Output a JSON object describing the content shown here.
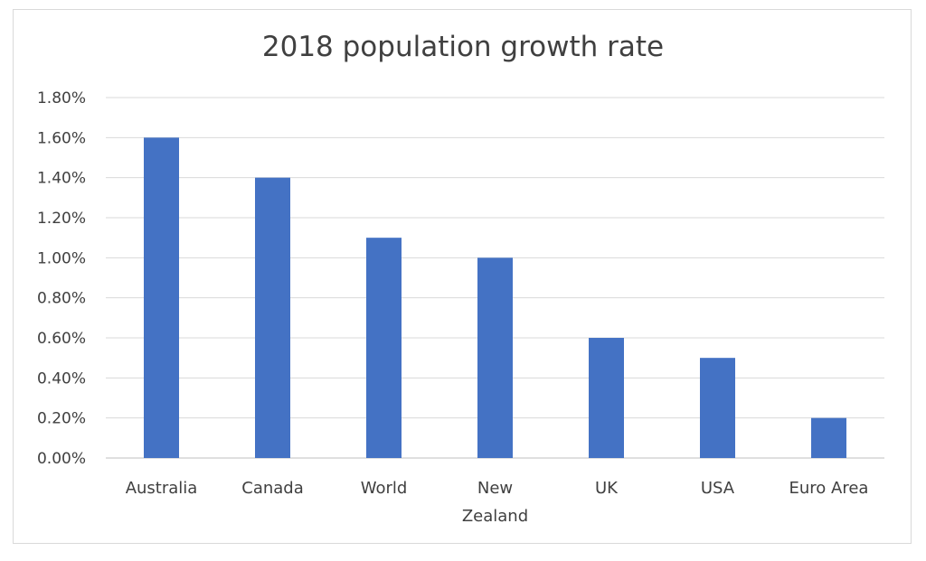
{
  "chart_data": {
    "type": "bar",
    "title": "2018 population growth rate",
    "xlabel": "",
    "ylabel": "",
    "categories": [
      "Australia",
      "Canada",
      "World",
      "New Zealand",
      "UK",
      "USA",
      "Euro Area"
    ],
    "category_lines": [
      [
        "Australia"
      ],
      [
        "Canada"
      ],
      [
        "World"
      ],
      [
        "New",
        "Zealand"
      ],
      [
        "UK"
      ],
      [
        "USA"
      ],
      [
        "Euro Area"
      ]
    ],
    "values": [
      1.6,
      1.4,
      1.1,
      1.0,
      0.6,
      0.5,
      0.2
    ],
    "ylim": [
      0,
      1.8
    ],
    "yticks": [
      0,
      0.2,
      0.4,
      0.6,
      0.8,
      1.0,
      1.2,
      1.4,
      1.6,
      1.8
    ],
    "ytick_labels": [
      "0.00%",
      "0.20%",
      "0.40%",
      "0.60%",
      "0.80%",
      "1.00%",
      "1.20%",
      "1.40%",
      "1.60%",
      "1.80%"
    ],
    "grid": true,
    "legend": "none",
    "bar_color": "#4472c4"
  }
}
